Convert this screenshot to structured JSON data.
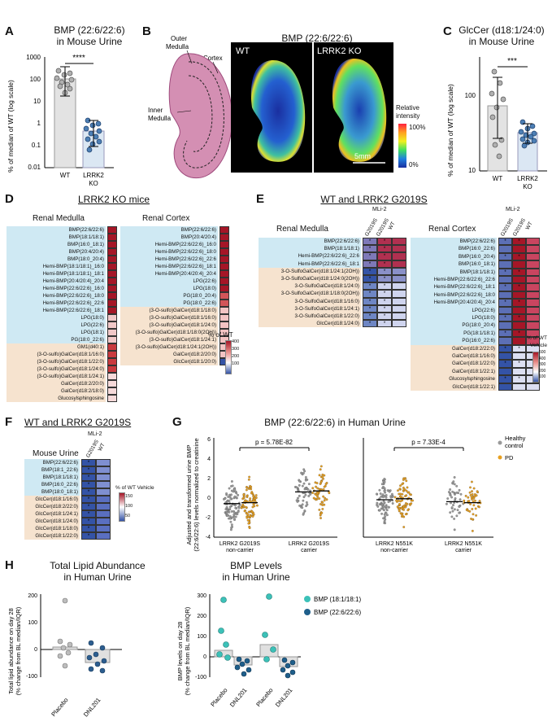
{
  "panels": {
    "A": {
      "label": "A",
      "title1": "BMP (22:6/22:6)",
      "title2": "in Mouse Urine",
      "ylabel": "% of median of WT (log scale)",
      "yticks": [
        "1000",
        "100",
        "10",
        "1",
        "0.1",
        "0.01"
      ],
      "xlabels": [
        "WT",
        "LRRK2",
        "KO"
      ],
      "sig": "****",
      "chart_data": {
        "type": "bar",
        "categories": [
          "WT",
          "LRRK2 KO"
        ],
        "values": [
          100,
          0.5
        ],
        "yscale": "log",
        "ylim": [
          0.01,
          1000
        ],
        "points": [
          [
            250,
            180,
            150,
            110,
            80,
            60,
            55,
            90,
            40,
            30
          ],
          [
            1.5,
            1.0,
            0.8,
            0.6,
            0.45,
            0.35,
            0.3,
            0.25,
            0.18,
            0.12,
            0.06
          ]
        ]
      }
    },
    "B": {
      "label": "B",
      "labels": [
        "Outer",
        "Medulla",
        "Cortex",
        "Inner",
        "Medulla"
      ],
      "title": "BMP (22:6/22:6)",
      "wt": "WT",
      "ko": "LRRK2 KO",
      "legend1": "Relative",
      "legend2": "intensity",
      "max": "100%",
      "min": "0%",
      "scale": "5mm"
    },
    "C": {
      "label": "C",
      "title1": "GlcCer (d18:1/24:0)",
      "title2": "in Mouse Urine",
      "ylabel": "% of median of WT (log scale)",
      "yticks": [
        "100",
        "10"
      ],
      "xlabels": [
        "WT",
        "LRRK2",
        "KO"
      ],
      "sig": "***",
      "chart_data": {
        "type": "bar",
        "categories": [
          "WT",
          "LRRK2 KO"
        ],
        "values": [
          85,
          33
        ],
        "yscale": "log",
        "ylim": [
          10,
          500
        ],
        "points": [
          [
            250,
            180,
            120,
            95,
            80,
            60,
            30,
            25,
            18
          ],
          [
            60,
            48,
            42,
            38,
            35,
            33,
            30,
            28,
            26,
            24,
            22
          ]
        ]
      }
    },
    "D": {
      "label": "D",
      "title": "LRRK2 KO mice",
      "medulla_title": "Renal Medulla",
      "cortex_title": "Renal Cortex",
      "medulla_rows": [
        "BMP(22:6/22:6)",
        "BMP(18:1/18:1)",
        "BMP(16:0_18:1)",
        "BMP(20:4/20:4)",
        "BMP(18:0_20:4)",
        "Hemi-BMP(18:1/18:1)_16:0",
        "Hemi-BMP(18:1/18:1)_18:1",
        "Hemi-BMP(20:4/20:4)_20:4",
        "Hemi-BMP(22:6/22:6)_16:0",
        "Hemi-BMP(22:6/22:6)_18:0",
        "Hemi-BMP(22:6/22:6)_22:6",
        "Hemi-BMP(22:6/22:6)_18:1",
        "LPG(18:0)",
        "LPG(22:6)",
        "LPG(18:1)",
        "PG(18:0_22:6)",
        "GM1(d40:1)",
        "(3-O-sulfo)GalCer(d18:1/16:0)",
        "(3-O-sulfo)GalCer(d18:1/22:0)",
        "(3-O-sulfo)GalCer(d18:1/24:0)",
        "(3-O-sulfo)GalCer(d18:1/24:1)",
        "GalCer(d18:2/20:0)",
        "GalCer(d18:2/18:0)",
        "Glucosylsphingosine"
      ],
      "cortex_rows": [
        "BMP(22:6/22:6)",
        "BMP(20:4/20:4)",
        "Hemi-BMP(22:6/22:6)_16:0",
        "Hemi-BMP(22:6/22:6)_18:0",
        "Hemi-BMP(22:6/22:6)_22:6",
        "Hemi-BMP(22:6/22:6)_18:1",
        "Hemi-BMP(20:4/20:4)_20:4",
        "LPG(22:6)",
        "LPG(18:0)",
        "PG(18:0_20:4)",
        "PG(18:0_22:6)",
        "(3-O-sulfo)GalCer(d18:1/18:0)",
        "(3-O-sulfo)GalCer(d18:1/16:0)",
        "(3-O-sulfo)GalCer(d18:1/24:0)",
        "(3-O-sulfo)GalCer(d18:1/18:0(2OH))",
        "(3-O-sulfo)GalCer(d18:1/24:1)",
        "(3-O-sulfo)GalCer(d18:1/24:1(2OH))",
        "GalCer(d18:2/20:0)",
        "GlcCer(d18:1/20:0)"
      ],
      "legend_title": "% of WT",
      "legend_ticks": [
        "400",
        "300",
        "200",
        "100"
      ]
    },
    "E": {
      "label": "E",
      "title": "WT and LRRK2 G2019S",
      "medulla_title": "Renal Medulla",
      "cortex_title": "Renal Cortex",
      "mli": "MLi-2",
      "cols": [
        "G2019S",
        "G2019S",
        "WT"
      ],
      "medulla_rows": [
        "BMP(22:6/22:6)",
        "BMP(18:1/18:1)",
        "Hemi-BMP(22:6/22:6)_22:6",
        "Hemi-BMP(22:6/22:6)_18:1",
        "3-O-SulfoGalCer(d18:1/24:1(2OH))",
        "3-O-SulfoGalCer(d18:1/24:0(2OH))",
        "3-O-SulfoGalCer(d18:1/24:0)",
        "3-O-SulfoGalCer(d18:1/18:0(2OH))",
        "3-O-SulfoGalCer(d18:1/16:0)",
        "3-O-SulfoGalCer(d18:1/24:1)",
        "3-O-SulfoGalCer(d18:1/22:0)",
        "GlcCer(d18:1/24:0)"
      ],
      "cortex_rows": [
        "BMP(22:6/22:6)",
        "BMP(16:0_22:6)",
        "BMP(16:0_20:4)",
        "BMP(16:0_18:1)",
        "BMP(18:1/18:1)",
        "Hemi-BMP(22:6/22:6)_22:6",
        "Hemi-BMP(22:6/22:6)_18:1",
        "Hemi-BMP(22:6/22:6)_18:0",
        "Hemi-BMP(20:4/20:4)_20:4",
        "LPG(22:6)",
        "LPG(18:0)",
        "PG(18:0_20:4)",
        "PG(18:1/18:1)",
        "PG(16:0_22:6)",
        "GalCer(d18:2/22:0)",
        "GalCer(d18:1/16:0)",
        "GalCer(d18:1/22:0)",
        "GalCer(d18:1/22:1)",
        "Glucosylsphingosine",
        "GlcCer(d18:1/22:1)"
      ],
      "legend_title1": "% of WT",
      "legend_title2": "Vehicle",
      "legend_ticks": [
        "500",
        "400",
        "300",
        "200",
        "100"
      ]
    },
    "F": {
      "label": "F",
      "title": "WT and LRRK2 G2019S",
      "sub": "Mouse Urine",
      "mli": "MLi-2",
      "cols": [
        "G2019S",
        "WT"
      ],
      "rows": [
        "BMP(22:6/22:6)",
        "BMP(18:1_22:6)",
        "BMP(18:1/18:1)",
        "BMP(16:0_22:6)",
        "BMP(18:0_18:1)",
        "GlcCer(d18:1/16:0)",
        "GlcCer(d18:2/22:0)",
        "GlcCer(d18:1/24:1)",
        "GlcCer(d18:1/24:0)",
        "GlcCer(d18:1/18:0)",
        "GlcCer(d18:1/22:0)"
      ],
      "legend_title": "% of WT Vehicle",
      "legend_ticks": [
        "150",
        "100",
        "50"
      ]
    },
    "G": {
      "label": "G",
      "title": "BMP (22:6/22:6) in Human Urine",
      "ylabel1": "Adjusted and transformed urine BMP",
      "ylabel2": "(22:6/22:6) levels normalized to creatinine",
      "p1": "p = 5.78E-82",
      "p2": "p = 7.33E-4",
      "legend": [
        "Healthy",
        "control",
        "PD"
      ],
      "yticks": [
        "6",
        "4",
        "2",
        "0",
        "-2",
        "-4"
      ],
      "x1": [
        "LRRK2 G2019S",
        "non-carrier",
        "LRRK2 G2019S",
        "carrier"
      ],
      "x2": [
        "LRRK2 N551K",
        "non-carrier",
        "LRRK2 N551K",
        "carrier"
      ],
      "chart_data": {
        "type": "scatter",
        "groups": [
          "G2019S non-carrier HC",
          "G2019S non-carrier PD",
          "G2019S carrier HC",
          "G2019S carrier PD",
          "N551K non-carrier HC",
          "N551K non-carrier PD",
          "N551K carrier HC",
          "N551K carrier PD"
        ],
        "medians": [
          -0.4,
          -0.3,
          0.8,
          0.9,
          0.0,
          0.1,
          -0.2,
          -0.3
        ],
        "ylim": [
          -4,
          6
        ]
      }
    },
    "H": {
      "label": "H",
      "title1": "Total Lipid Abundance",
      "title2": "in Human Urine",
      "title3": "BMP Levels",
      "title4": "in Human Urine",
      "ylabel1a": "Total lipid abundance on day 28",
      "ylabel1b": "(% change from BL median/IQR)",
      "ylabel2a": "BMP levels on day 28",
      "ylabel2b": "(% change from BL median/IQR)",
      "yticks1": [
        "200",
        "100",
        "0",
        "-100"
      ],
      "yticks2": [
        "300",
        "200",
        "100",
        "0",
        "-100"
      ],
      "x": [
        "Placebo",
        "DNL201"
      ],
      "x2": [
        "Placebo",
        "DNL201",
        "Placebo",
        "DNL201"
      ],
      "legend": [
        "BMP (18:1/18:1)",
        "BMP (22:6/22:6)"
      ],
      "colors": {
        "bmp18": "#3cc1b8",
        "bmp22": "#1f5f8b"
      },
      "chart_data": [
        {
          "type": "bar",
          "categories": [
            "Placebo",
            "DNL201"
          ],
          "values": [
            0,
            -20
          ],
          "ylim": [
            -100,
            200
          ]
        },
        {
          "type": "bar",
          "series": [
            {
              "name": "BMP (18:1/18:1)",
              "values": [
                30,
                50
              ]
            },
            {
              "name": "BMP (22:6/22:6)",
              "values": [
                -30,
                -40
              ]
            }
          ],
          "categories": [
            "Placebo",
            "DNL201"
          ],
          "ylim": [
            -100,
            300
          ]
        }
      ]
    }
  }
}
